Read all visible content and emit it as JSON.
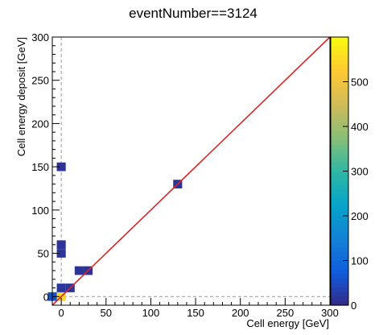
{
  "chart_data": {
    "type": "heatmap",
    "title": "eventNumber==3124",
    "xlabel": "Cell energy [GeV]",
    "ylabel": "Cell energy deposit [GeV]",
    "xlim": [
      -10,
      300
    ],
    "ylim": [
      -10,
      300
    ],
    "bin_width": 10,
    "x_ticks": [
      0,
      50,
      100,
      150,
      200,
      250,
      300
    ],
    "y_ticks": [
      0,
      50,
      100,
      150,
      200,
      250,
      300
    ],
    "z_range": [
      0,
      600
    ],
    "z_ticks": [
      0,
      100,
      200,
      300,
      400,
      500
    ],
    "reference_line": {
      "from": [
        -10,
        -10
      ],
      "to": [
        300,
        300
      ],
      "color": "#d62728"
    },
    "zero_guides": {
      "x": 0,
      "y": 0,
      "style": "dashed",
      "color": "#999999"
    },
    "bins": [
      {
        "x": 0,
        "y": 0,
        "z": 550
      },
      {
        "x": -10,
        "y": 0,
        "z": 60
      },
      {
        "x": 0,
        "y": 10,
        "z": 20
      },
      {
        "x": 10,
        "y": 10,
        "z": 15
      },
      {
        "x": 20,
        "y": 30,
        "z": 15
      },
      {
        "x": 30,
        "y": 30,
        "z": 12
      },
      {
        "x": 0,
        "y": 50,
        "z": 15
      },
      {
        "x": 0,
        "y": 60,
        "z": 15
      },
      {
        "x": 0,
        "y": 150,
        "z": 15
      },
      {
        "x": 130,
        "y": 130,
        "z": 15
      }
    ],
    "colorbar": "right",
    "grid": false
  }
}
